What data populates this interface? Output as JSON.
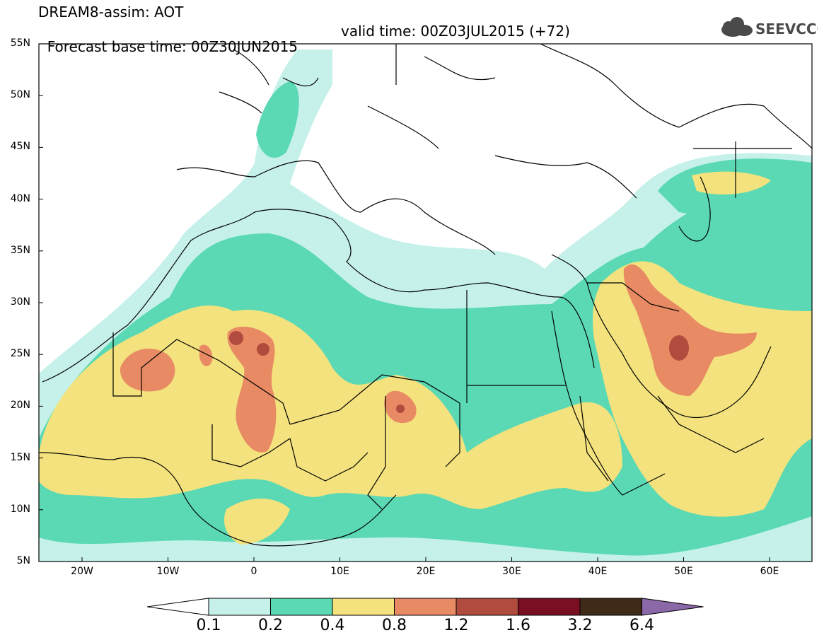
{
  "title": {
    "line1": "DREAM8-assim: AOT",
    "line2_base": "Forecast base time: 00Z30JUN2015",
    "line2_valid": "valid time: 00Z03JUL2015 (+72)"
  },
  "logo": {
    "text": "SEEVCCC",
    "icon": "cloud-icon"
  },
  "axes": {
    "lat_labels": [
      "55N",
      "50N",
      "45N",
      "40N",
      "35N",
      "30N",
      "25N",
      "20N",
      "15N",
      "10N",
      "5N"
    ],
    "lon_labels": [
      "20W",
      "10W",
      "0",
      "10E",
      "20E",
      "30E",
      "40E",
      "50E",
      "60E"
    ]
  },
  "colorbar": {
    "labels": [
      "0.1",
      "0.2",
      "0.4",
      "0.8",
      "1.2",
      "1.6",
      "3.2",
      "6.4"
    ],
    "colors": [
      "#c6f1ea",
      "#5ad9b4",
      "#f3e27d",
      "#e88a64",
      "#b04b3e",
      "#7a0f24",
      "#3f2a17"
    ],
    "under_color": "#ffffff",
    "over_color": "#8b68a8"
  },
  "palette": {
    "land_outline": "#000000",
    "background": "#ffffff"
  }
}
